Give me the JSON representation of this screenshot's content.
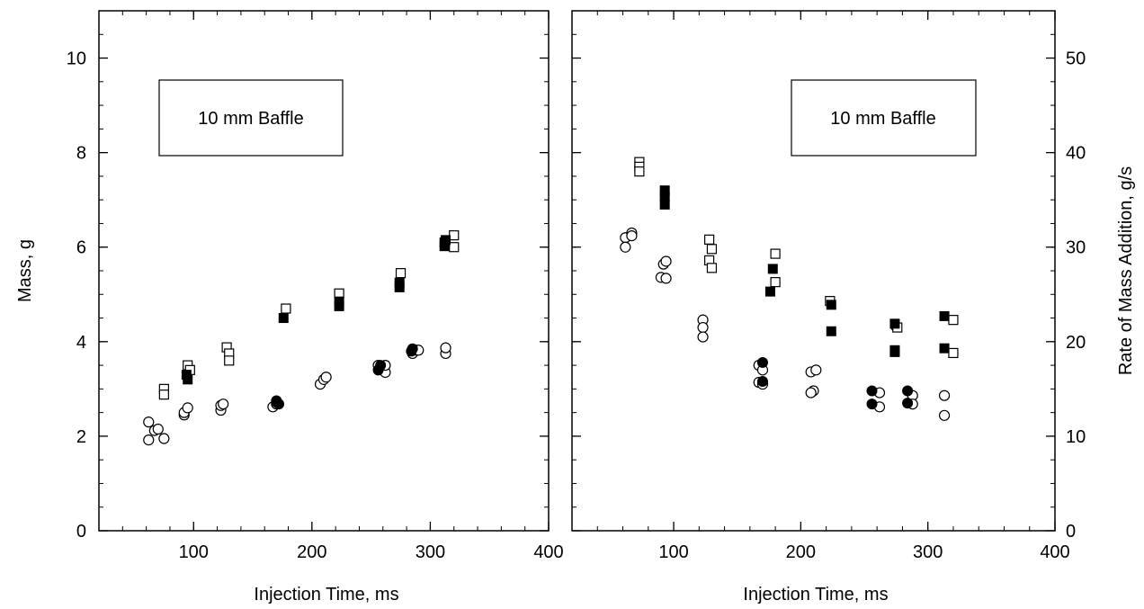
{
  "chart_data": [
    {
      "type": "scatter",
      "title": "",
      "annotation": "10 mm Baffle",
      "xlabel": "Injection Time, ms",
      "ylabel": "Mass, g",
      "xlim": [
        20,
        400
      ],
      "ylim": [
        0,
        11
      ],
      "xticks": [
        100,
        200,
        300,
        400
      ],
      "yticks": [
        0,
        2,
        4,
        6,
        8,
        10
      ],
      "grid": false,
      "legend": "none",
      "series": [
        {
          "marker": "open-circle",
          "points": [
            [
              62,
              2.3
            ],
            [
              67,
              2.12
            ],
            [
              70,
              2.15
            ],
            [
              62,
              1.92
            ],
            [
              75,
              1.95
            ],
            [
              92,
              2.45
            ],
            [
              92,
              2.5
            ],
            [
              95,
              2.6
            ],
            [
              123,
              2.55
            ],
            [
              123,
              2.65
            ],
            [
              125,
              2.68
            ],
            [
              167,
              2.62
            ],
            [
              170,
              2.68
            ],
            [
              170,
              2.72
            ],
            [
              207,
              3.1
            ],
            [
              210,
              3.2
            ],
            [
              212,
              3.25
            ],
            [
              256,
              3.5
            ],
            [
              262,
              3.35
            ],
            [
              262,
              3.5
            ],
            [
              285,
              3.75
            ],
            [
              288,
              3.82
            ],
            [
              290,
              3.82
            ],
            [
              313,
              3.75
            ],
            [
              313,
              3.87
            ]
          ]
        },
        {
          "marker": "filled-circle",
          "points": [
            [
              170,
              2.75
            ],
            [
              172,
              2.68
            ],
            [
              256,
              3.4
            ],
            [
              258,
              3.5
            ],
            [
              284,
              3.8
            ],
            [
              285,
              3.85
            ]
          ]
        },
        {
          "marker": "open-square",
          "points": [
            [
              75,
              3.0
            ],
            [
              75,
              2.88
            ],
            [
              95,
              3.5
            ],
            [
              97,
              3.4
            ],
            [
              128,
              3.88
            ],
            [
              130,
              3.75
            ],
            [
              130,
              3.6
            ],
            [
              178,
              4.7
            ],
            [
              223,
              5.02
            ],
            [
              275,
              5.45
            ],
            [
              320,
              6.25
            ],
            [
              320,
              6.0
            ]
          ]
        },
        {
          "marker": "filled-square",
          "points": [
            [
              94,
              3.3
            ],
            [
              95,
              3.2
            ],
            [
              176,
              4.5
            ],
            [
              223,
              4.75
            ],
            [
              223,
              4.85
            ],
            [
              274,
              5.15
            ],
            [
              274,
              5.25
            ],
            [
              312,
              6.1
            ],
            [
              312,
              6.02
            ],
            [
              313,
              6.15
            ]
          ]
        }
      ]
    },
    {
      "type": "scatter",
      "title": "",
      "annotation": "10 mm Baffle",
      "xlabel": "Injection Time, ms",
      "ylabel": "Rate of Mass Addition, g/s",
      "xlim": [
        20,
        400
      ],
      "ylim": [
        0,
        55
      ],
      "xticks": [
        100,
        200,
        300,
        400
      ],
      "yticks": [
        0,
        10,
        20,
        30,
        40,
        50
      ],
      "grid": false,
      "legend": "none",
      "series": [
        {
          "marker": "open-circle",
          "points": [
            [
              62,
              31
            ],
            [
              62,
              30
            ],
            [
              67,
              31.5
            ],
            [
              67,
              31.2
            ],
            [
              90,
              26.8
            ],
            [
              92,
              28.2
            ],
            [
              94,
              28.5
            ],
            [
              94,
              26.7
            ],
            [
              123,
              22.3
            ],
            [
              123,
              21.5
            ],
            [
              123,
              20.5
            ],
            [
              167,
              17.5
            ],
            [
              170,
              17
            ],
            [
              167,
              15.7
            ],
            [
              170,
              15.5
            ],
            [
              208,
              16.8
            ],
            [
              212,
              17
            ],
            [
              210,
              14.8
            ],
            [
              208,
              14.6
            ],
            [
              262,
              14.6
            ],
            [
              262,
              13.1
            ],
            [
              288,
              14.3
            ],
            [
              288,
              13.4
            ],
            [
              313,
              14.3
            ],
            [
              313,
              12.2
            ],
            [
              275,
              21.6
            ]
          ]
        },
        {
          "marker": "filled-circle",
          "points": [
            [
              170,
              17.8
            ],
            [
              170,
              15.8
            ],
            [
              256,
              14.8
            ],
            [
              256,
              13.4
            ],
            [
              284,
              14.8
            ],
            [
              284,
              13.5
            ]
          ]
        },
        {
          "marker": "open-square",
          "points": [
            [
              73,
              39
            ],
            [
              73,
              38.5
            ],
            [
              73,
              38
            ],
            [
              128,
              30.8
            ],
            [
              130,
              29.8
            ],
            [
              128,
              28.6
            ],
            [
              130,
              27.8
            ],
            [
              180,
              29.3
            ],
            [
              180,
              26.3
            ],
            [
              223,
              24.3
            ],
            [
              276,
              21.5
            ],
            [
              320,
              22.3
            ],
            [
              320,
              18.8
            ]
          ]
        },
        {
          "marker": "filled-square",
          "points": [
            [
              93,
              36
            ],
            [
              93,
              35.3
            ],
            [
              93,
              34.5
            ],
            [
              178,
              27.7
            ],
            [
              176,
              25.3
            ],
            [
              224,
              23.9
            ],
            [
              224,
              21.1
            ],
            [
              274,
              21.9
            ],
            [
              274,
              19.1
            ],
            [
              274,
              18.9
            ],
            [
              313,
              22.7
            ],
            [
              313,
              19.3
            ]
          ]
        }
      ]
    }
  ]
}
